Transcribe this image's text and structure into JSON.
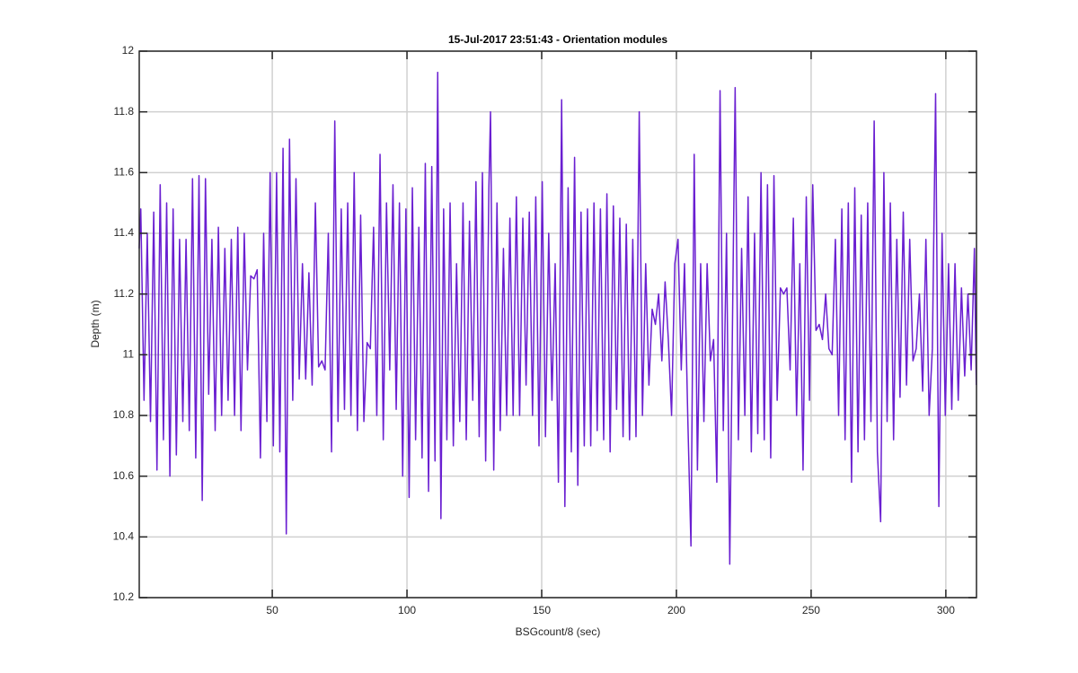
{
  "chart_data": {
    "type": "line",
    "title": "15-Jul-2017 23:51:43 - Orientation modules",
    "xlabel": "BSGcount/8 (sec)",
    "ylabel": "Depth (m)",
    "xlim": [
      0.625,
      311.375
    ],
    "ylim": [
      10.2,
      12
    ],
    "xticks": [
      50,
      100,
      150,
      200,
      250,
      300
    ],
    "yticks": [
      10.2,
      10.4,
      10.6,
      10.8,
      11,
      11.2,
      11.4,
      11.6,
      11.8,
      12
    ],
    "grid": true,
    "x": [
      0.6,
      1.2,
      2.4,
      3.6,
      4.8,
      6.0,
      7.2,
      8.4,
      9.6,
      10.8,
      12.0,
      13.2,
      14.4,
      15.6,
      16.8,
      18.0,
      19.2,
      20.4,
      21.6,
      22.8,
      24.0,
      25.2,
      26.4,
      27.6,
      28.8,
      30.0,
      31.2,
      32.4,
      33.6,
      34.8,
      36.0,
      37.2,
      38.4,
      39.6,
      40.8,
      42.0,
      43.2,
      44.4,
      45.6,
      46.8,
      48.0,
      49.2,
      50.4,
      51.6,
      52.8,
      54.0,
      55.2,
      56.4,
      57.6,
      58.8,
      60.0,
      61.2,
      62.4,
      63.6,
      64.8,
      66.0,
      67.2,
      68.4,
      69.6,
      70.8,
      72.0,
      73.2,
      74.4,
      75.6,
      76.8,
      78.0,
      79.2,
      80.4,
      81.6,
      82.8,
      84.0,
      85.2,
      86.4,
      87.6,
      88.8,
      90.0,
      91.2,
      92.4,
      93.6,
      94.8,
      96.0,
      97.2,
      98.4,
      99.6,
      100.8,
      102.0,
      103.2,
      104.4,
      105.6,
      106.8,
      108.0,
      109.2,
      110.4,
      111.4,
      112.6,
      113.6,
      114.8,
      116.0,
      117.2,
      118.4,
      119.6,
      120.8,
      122.0,
      123.2,
      124.4,
      125.6,
      126.8,
      128.0,
      129.2,
      130.4,
      131.0,
      132.2,
      133.4,
      134.6,
      135.8,
      137.0,
      138.2,
      139.4,
      140.6,
      141.8,
      143.0,
      144.2,
      145.4,
      146.6,
      147.8,
      149.0,
      150.2,
      151.4,
      152.6,
      153.8,
      155.0,
      156.2,
      157.4,
      158.6,
      159.8,
      161.0,
      162.2,
      163.4,
      164.6,
      165.8,
      167.0,
      168.2,
      169.4,
      170.6,
      171.8,
      173.0,
      174.2,
      175.4,
      176.6,
      177.8,
      179.0,
      180.2,
      181.4,
      182.6,
      183.8,
      185.0,
      186.2,
      187.4,
      188.6,
      189.8,
      191.0,
      192.2,
      193.4,
      194.6,
      195.8,
      197.0,
      198.2,
      199.4,
      200.6,
      201.8,
      203.0,
      204.2,
      205.4,
      206.6,
      207.8,
      209.0,
      210.2,
      211.4,
      212.6,
      213.8,
      215.0,
      216.2,
      217.4,
      218.6,
      219.8,
      221.8,
      223.0,
      224.2,
      225.4,
      226.6,
      227.8,
      229.0,
      230.2,
      231.4,
      232.6,
      233.8,
      235.0,
      236.2,
      237.4,
      238.6,
      239.8,
      241.0,
      242.2,
      243.4,
      244.6,
      245.8,
      247.0,
      248.2,
      249.4,
      250.6,
      251.8,
      253.0,
      254.2,
      255.4,
      256.6,
      257.8,
      259.0,
      260.2,
      261.4,
      262.6,
      263.8,
      265.0,
      266.2,
      267.4,
      268.6,
      269.8,
      271.0,
      272.2,
      273.4,
      274.6,
      275.8,
      277.0,
      278.2,
      279.4,
      280.6,
      281.8,
      283.0,
      284.2,
      285.4,
      286.6,
      287.8,
      289.0,
      290.2,
      291.4,
      292.6,
      293.8,
      295.0,
      296.2,
      297.4,
      298.6,
      299.8,
      301.0,
      302.2,
      303.4,
      304.6,
      305.8,
      307.0,
      308.2,
      309.4,
      310.6,
      311.3
    ],
    "series": [
      {
        "color": "#6a1fd1",
        "values": [
          11.35,
          11.48,
          10.85,
          11.4,
          10.78,
          11.47,
          10.62,
          11.56,
          10.72,
          11.5,
          10.6,
          11.48,
          10.67,
          11.38,
          10.78,
          11.38,
          10.75,
          11.58,
          10.66,
          11.59,
          10.52,
          11.58,
          10.87,
          11.38,
          10.75,
          11.42,
          10.8,
          11.35,
          10.85,
          11.38,
          10.8,
          11.42,
          10.75,
          11.4,
          10.95,
          11.26,
          11.25,
          11.28,
          10.66,
          11.4,
          10.78,
          11.6,
          10.7,
          11.6,
          10.68,
          11.68,
          10.41,
          11.71,
          10.85,
          11.58,
          10.92,
          11.3,
          10.92,
          11.27,
          10.9,
          11.5,
          10.96,
          10.98,
          10.95,
          11.4,
          10.68,
          11.77,
          10.78,
          11.48,
          10.82,
          11.5,
          10.8,
          11.6,
          10.75,
          11.46,
          10.78,
          11.04,
          11.02,
          11.42,
          10.8,
          11.66,
          10.72,
          11.5,
          10.95,
          11.56,
          10.82,
          11.5,
          10.6,
          11.48,
          10.53,
          11.55,
          10.72,
          11.42,
          10.66,
          11.63,
          10.55,
          11.62,
          10.65,
          11.93,
          10.46,
          11.48,
          10.72,
          11.5,
          10.7,
          11.3,
          10.78,
          11.5,
          10.72,
          11.44,
          10.85,
          11.57,
          10.73,
          11.6,
          10.65,
          11.55,
          11.8,
          10.62,
          11.5,
          10.75,
          11.35,
          10.8,
          11.45,
          10.8,
          11.52,
          10.8,
          11.45,
          10.9,
          11.47,
          10.8,
          11.52,
          10.7,
          11.57,
          10.73,
          11.4,
          10.85,
          11.3,
          10.58,
          11.84,
          10.5,
          11.55,
          10.68,
          11.65,
          10.57,
          11.47,
          10.7,
          11.48,
          10.7,
          11.5,
          10.75,
          11.48,
          10.72,
          11.53,
          10.68,
          11.49,
          10.82,
          11.45,
          10.73,
          11.43,
          10.72,
          11.38,
          10.73,
          11.8,
          10.8,
          11.3,
          10.9,
          11.15,
          11.1,
          11.2,
          10.98,
          11.24,
          11.05,
          10.8,
          11.3,
          11.38,
          10.95,
          11.3,
          10.8,
          10.37,
          11.66,
          10.62,
          11.3,
          10.78,
          11.3,
          10.98,
          11.05,
          10.58,
          11.87,
          10.75,
          11.4,
          10.31,
          11.88,
          10.72,
          11.35,
          10.8,
          11.52,
          10.68,
          11.4,
          10.74,
          11.6,
          10.72,
          11.56,
          10.66,
          11.59,
          10.85,
          11.22,
          11.2,
          11.22,
          10.95,
          11.45,
          10.8,
          11.3,
          10.62,
          11.52,
          10.85,
          11.56,
          11.08,
          11.1,
          11.05,
          11.2,
          11.02,
          11.0,
          11.38,
          10.8,
          11.48,
          10.72,
          11.5,
          10.58,
          11.55,
          10.68,
          11.46,
          10.72,
          11.5,
          10.78,
          11.77,
          10.68,
          10.45,
          11.6,
          10.78,
          11.5,
          10.72,
          11.38,
          10.86,
          11.47,
          10.9,
          11.38,
          10.98,
          11.02,
          11.2,
          10.88,
          11.38,
          10.8,
          11.02,
          11.86,
          10.5,
          11.4,
          10.8,
          11.3,
          10.82,
          11.3,
          10.85,
          11.22,
          10.93,
          11.2,
          10.95,
          11.35,
          10.9
        ]
      }
    ]
  }
}
